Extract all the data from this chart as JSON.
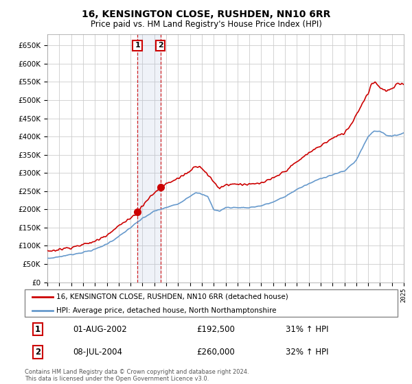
{
  "title": "16, KENSINGTON CLOSE, RUSHDEN, NN10 6RR",
  "subtitle": "Price paid vs. HM Land Registry's House Price Index (HPI)",
  "legend_line1": "16, KENSINGTON CLOSE, RUSHDEN, NN10 6RR (detached house)",
  "legend_line2": "HPI: Average price, detached house, North Northamptonshire",
  "transaction1_date": "01-AUG-2002",
  "transaction1_price": "£192,500",
  "transaction1_hpi": "31% ↑ HPI",
  "transaction2_date": "08-JUL-2004",
  "transaction2_price": "£260,000",
  "transaction2_hpi": "32% ↑ HPI",
  "footnote": "Contains HM Land Registry data © Crown copyright and database right 2024.\nThis data is licensed under the Open Government Licence v3.0.",
  "line_color_red": "#cc0000",
  "line_color_blue": "#6699cc",
  "background_color": "#ffffff",
  "grid_color": "#cccccc",
  "ylim": [
    0,
    680000
  ],
  "yticks": [
    0,
    50000,
    100000,
    150000,
    200000,
    250000,
    300000,
    350000,
    400000,
    450000,
    500000,
    550000,
    600000,
    650000
  ],
  "transaction1_x": 2002.58,
  "transaction2_x": 2004.52,
  "transaction1_y": 192500,
  "transaction2_y": 260000,
  "vline1_x": 2002.58,
  "vline2_x": 2004.52,
  "highlight_xmin": 2002.58,
  "highlight_xmax": 2004.52,
  "xmin": 1995,
  "xmax": 2025
}
